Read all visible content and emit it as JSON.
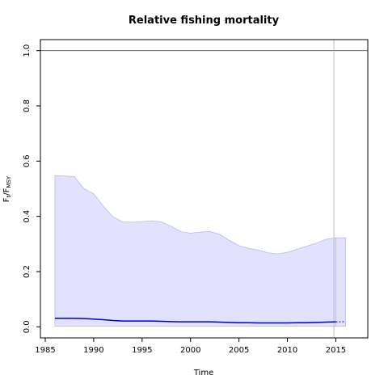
{
  "chart_data": {
    "type": "line",
    "title": "Relative fishing mortality",
    "xlabel": "Time",
    "ylabel": {
      "main": "F",
      "sub1": "t",
      "sep": "/F",
      "sub2": "MSY"
    },
    "xlim": [
      1984.5,
      2018.3
    ],
    "ylim": [
      -0.04,
      1.04
    ],
    "x_ticks": [
      1985,
      1990,
      1995,
      2000,
      2005,
      2010,
      2015
    ],
    "y_ticks": [
      0.0,
      0.2,
      0.4,
      0.6,
      0.8,
      1.0
    ],
    "reference_line_y": 1.0,
    "reference_line_x": 2014.8,
    "colors": {
      "median": "#0000cc",
      "band_fill": "#e2e2ff",
      "band_edge": "#b8b8f0",
      "reference": "#666666",
      "vline": "#bbbbbb"
    },
    "series": [
      {
        "x": [
          1986,
          1987,
          1988,
          1989,
          1990,
          1991,
          1992,
          1993,
          1994,
          1995,
          1996,
          1997,
          1998,
          1999,
          2000,
          2001,
          2002,
          2003,
          2004,
          2005,
          2006,
          2007,
          2008,
          2009,
          2010,
          2011,
          2012,
          2013,
          2014,
          2015
        ],
        "median": [
          0.031,
          0.031,
          0.031,
          0.03,
          0.028,
          0.026,
          0.023,
          0.021,
          0.021,
          0.021,
          0.021,
          0.02,
          0.019,
          0.018,
          0.018,
          0.018,
          0.018,
          0.017,
          0.016,
          0.015,
          0.015,
          0.014,
          0.014,
          0.014,
          0.014,
          0.015,
          0.015,
          0.016,
          0.017,
          0.018
        ],
        "upper": [
          0.548,
          0.546,
          0.544,
          0.5,
          0.482,
          0.437,
          0.398,
          0.38,
          0.379,
          0.381,
          0.384,
          0.38,
          0.364,
          0.345,
          0.339,
          0.343,
          0.345,
          0.335,
          0.313,
          0.294,
          0.284,
          0.278,
          0.268,
          0.264,
          0.27,
          0.281,
          0.292,
          0.303,
          0.317,
          0.322
        ],
        "lower": [
          0.002,
          0.002,
          0.002,
          0.002,
          0.002,
          0.002,
          0.002,
          0.002,
          0.002,
          0.002,
          0.002,
          0.002,
          0.002,
          0.002,
          0.002,
          0.002,
          0.002,
          0.002,
          0.002,
          0.002,
          0.002,
          0.002,
          0.002,
          0.002,
          0.002,
          0.002,
          0.002,
          0.002,
          0.002,
          0.002
        ]
      }
    ],
    "projection": {
      "x": [
        2015,
        2016
      ],
      "median": [
        0.018,
        0.019
      ],
      "upper": [
        0.322,
        0.323
      ],
      "lower": [
        0.002,
        0.002
      ]
    }
  }
}
